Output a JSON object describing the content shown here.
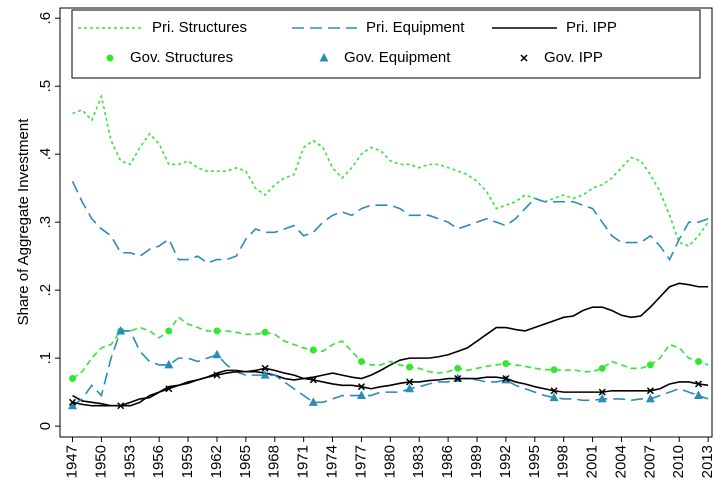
{
  "chart_data": {
    "type": "line",
    "y_label": "Share of Aggregate Investment",
    "x": [
      1947,
      1948,
      1949,
      1950,
      1951,
      1952,
      1953,
      1954,
      1955,
      1956,
      1957,
      1958,
      1959,
      1960,
      1961,
      1962,
      1963,
      1964,
      1965,
      1966,
      1967,
      1968,
      1969,
      1970,
      1971,
      1972,
      1973,
      1974,
      1975,
      1976,
      1977,
      1978,
      1979,
      1980,
      1981,
      1982,
      1983,
      1984,
      1985,
      1986,
      1987,
      1988,
      1989,
      1990,
      1991,
      1992,
      1993,
      1994,
      1995,
      1996,
      1997,
      1998,
      1999,
      2000,
      2001,
      2002,
      2003,
      2004,
      2005,
      2006,
      2007,
      2008,
      2009,
      2010,
      2011,
      2012,
      2013
    ],
    "xlim": [
      1945.7,
      2013.4
    ],
    "xticks": [
      1947,
      1950,
      1953,
      1956,
      1959,
      1962,
      1965,
      1968,
      1971,
      1974,
      1977,
      1980,
      1983,
      1986,
      1989,
      1992,
      1995,
      1998,
      2001,
      2004,
      2007,
      2010,
      2013
    ],
    "ylim": [
      -0.016,
      0.615
    ],
    "yticks": [
      0,
      {
        "value": 0.1,
        "label": ".1"
      },
      {
        "value": 0.2,
        "label": ".2"
      },
      {
        "value": 0.3,
        "label": ".3"
      },
      {
        "value": 0.4,
        "label": ".4"
      },
      {
        "value": 0.5,
        "label": ".5"
      },
      {
        "value": 0.6,
        "label": ".6"
      }
    ],
    "series": [
      {
        "name": "Pri. Structures",
        "color": "#33e633",
        "style": "dotted",
        "values": [
          0.46,
          0.465,
          0.45,
          0.485,
          0.42,
          0.39,
          0.385,
          0.41,
          0.43,
          0.415,
          0.385,
          0.385,
          0.39,
          0.38,
          0.375,
          0.375,
          0.375,
          0.38,
          0.375,
          0.35,
          0.34,
          0.355,
          0.365,
          0.37,
          0.41,
          0.42,
          0.41,
          0.38,
          0.365,
          0.38,
          0.4,
          0.41,
          0.405,
          0.39,
          0.385,
          0.385,
          0.38,
          0.385,
          0.385,
          0.38,
          0.375,
          0.37,
          0.36,
          0.345,
          0.32,
          0.325,
          0.33,
          0.34,
          0.335,
          0.33,
          0.335,
          0.34,
          0.335,
          0.34,
          0.35,
          0.355,
          0.365,
          0.38,
          0.395,
          0.39,
          0.37,
          0.345,
          0.31,
          0.27,
          0.265,
          0.28,
          0.3
        ]
      },
      {
        "name": "Pri. Equipment",
        "color": "#2a8db8",
        "style": "dashed",
        "values": [
          0.36,
          0.33,
          0.305,
          0.29,
          0.28,
          0.255,
          0.255,
          0.25,
          0.26,
          0.265,
          0.275,
          0.245,
          0.245,
          0.25,
          0.24,
          0.245,
          0.245,
          0.25,
          0.275,
          0.29,
          0.285,
          0.285,
          0.29,
          0.295,
          0.28,
          0.285,
          0.3,
          0.31,
          0.315,
          0.31,
          0.32,
          0.325,
          0.325,
          0.325,
          0.32,
          0.31,
          0.31,
          0.31,
          0.305,
          0.3,
          0.29,
          0.295,
          0.3,
          0.305,
          0.3,
          0.295,
          0.305,
          0.32,
          0.335,
          0.33,
          0.33,
          0.33,
          0.33,
          0.325,
          0.32,
          0.3,
          0.28,
          0.27,
          0.27,
          0.27,
          0.28,
          0.265,
          0.245,
          0.275,
          0.3,
          0.3,
          0.305
        ]
      },
      {
        "name": "Pri. IPP",
        "color": "#000000",
        "style": "solid",
        "values": [
          0.045,
          0.037,
          0.035,
          0.033,
          0.03,
          0.03,
          0.035,
          0.04,
          0.042,
          0.05,
          0.058,
          0.06,
          0.063,
          0.068,
          0.072,
          0.078,
          0.082,
          0.082,
          0.08,
          0.08,
          0.078,
          0.075,
          0.07,
          0.068,
          0.07,
          0.072,
          0.075,
          0.078,
          0.075,
          0.072,
          0.07,
          0.075,
          0.082,
          0.09,
          0.097,
          0.1,
          0.1,
          0.1,
          0.102,
          0.105,
          0.11,
          0.115,
          0.125,
          0.135,
          0.145,
          0.145,
          0.142,
          0.14,
          0.145,
          0.15,
          0.155,
          0.16,
          0.162,
          0.17,
          0.175,
          0.175,
          0.17,
          0.163,
          0.16,
          0.162,
          0.175,
          0.19,
          0.205,
          0.21,
          0.208,
          0.205,
          0.205
        ]
      },
      {
        "name": "Gov. Structures",
        "color": "#33e633",
        "style": "dashed-short",
        "marker": "circle",
        "values": [
          0.07,
          0.08,
          0.1,
          0.115,
          0.12,
          0.14,
          0.14,
          0.145,
          0.14,
          0.13,
          0.14,
          0.16,
          0.15,
          0.145,
          0.14,
          0.14,
          0.14,
          0.138,
          0.135,
          0.135,
          0.138,
          0.135,
          0.125,
          0.12,
          0.115,
          0.112,
          0.11,
          0.12,
          0.125,
          0.11,
          0.095,
          0.09,
          0.09,
          0.095,
          0.09,
          0.087,
          0.085,
          0.08,
          0.078,
          0.08,
          0.085,
          0.082,
          0.085,
          0.088,
          0.09,
          0.092,
          0.09,
          0.088,
          0.085,
          0.083,
          0.083,
          0.082,
          0.083,
          0.08,
          0.08,
          0.085,
          0.095,
          0.09,
          0.085,
          0.085,
          0.09,
          0.1,
          0.12,
          0.115,
          0.1,
          0.095,
          0.09
        ]
      },
      {
        "name": "Gov. Equipment",
        "color": "#2a8db8",
        "style": "dashed",
        "marker": "triangle",
        "values": [
          0.03,
          0.04,
          0.06,
          0.045,
          0.1,
          0.14,
          0.14,
          0.11,
          0.095,
          0.09,
          0.09,
          0.1,
          0.1,
          0.095,
          0.1,
          0.105,
          0.09,
          0.08,
          0.075,
          0.075,
          0.075,
          0.075,
          0.065,
          0.055,
          0.045,
          0.035,
          0.035,
          0.04,
          0.045,
          0.045,
          0.045,
          0.045,
          0.05,
          0.05,
          0.05,
          0.055,
          0.058,
          0.062,
          0.065,
          0.065,
          0.07,
          0.07,
          0.068,
          0.065,
          0.065,
          0.068,
          0.06,
          0.055,
          0.05,
          0.045,
          0.042,
          0.04,
          0.04,
          0.038,
          0.038,
          0.04,
          0.04,
          0.04,
          0.038,
          0.04,
          0.04,
          0.045,
          0.05,
          0.055,
          0.05,
          0.045,
          0.04
        ]
      },
      {
        "name": "Gov. IPP",
        "color": "#000000",
        "style": "solid",
        "marker": "x",
        "values": [
          0.035,
          0.032,
          0.03,
          0.03,
          0.03,
          0.03,
          0.03,
          0.035,
          0.045,
          0.05,
          0.055,
          0.06,
          0.065,
          0.068,
          0.072,
          0.075,
          0.078,
          0.08,
          0.08,
          0.082,
          0.085,
          0.082,
          0.078,
          0.075,
          0.07,
          0.068,
          0.065,
          0.062,
          0.06,
          0.06,
          0.058,
          0.055,
          0.058,
          0.06,
          0.063,
          0.065,
          0.065,
          0.067,
          0.068,
          0.07,
          0.07,
          0.07,
          0.07,
          0.072,
          0.072,
          0.07,
          0.065,
          0.062,
          0.058,
          0.055,
          0.052,
          0.05,
          0.05,
          0.05,
          0.05,
          0.05,
          0.052,
          0.052,
          0.052,
          0.052,
          0.052,
          0.055,
          0.062,
          0.065,
          0.065,
          0.062,
          0.06
        ]
      }
    ]
  }
}
